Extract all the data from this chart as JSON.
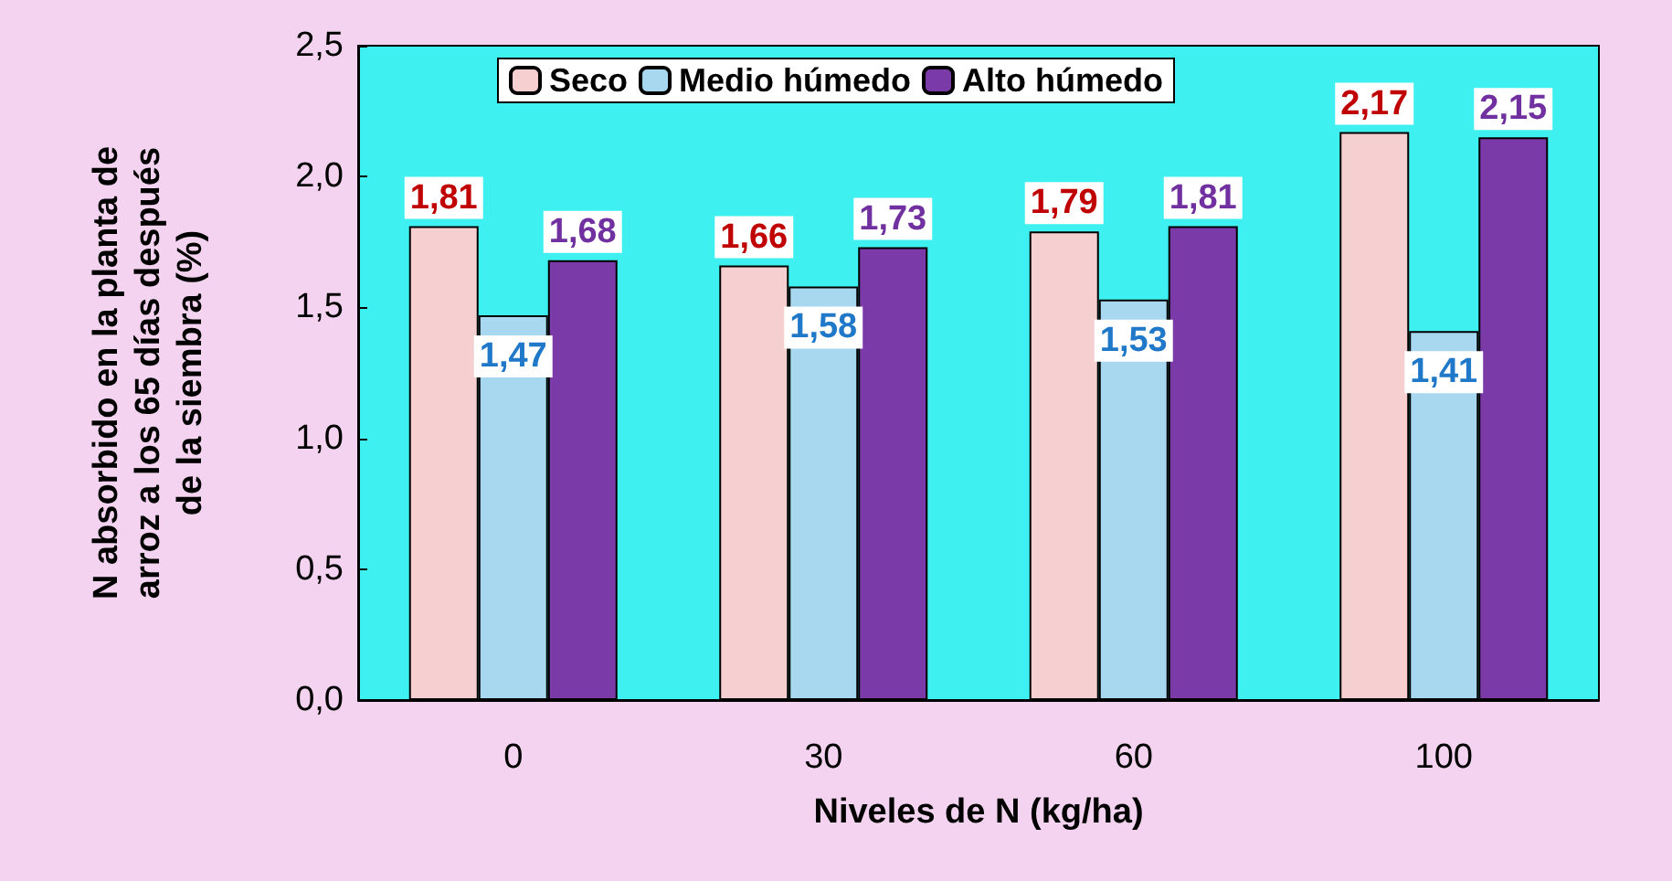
{
  "chart_data": {
    "type": "bar",
    "xlabel": "Niveles de N (kg/ha)",
    "ylabel": "N absorbido en la planta de\narroz a los 65 días después\nde la siembra (%)",
    "categories": [
      "0",
      "30",
      "60",
      "100"
    ],
    "series": [
      {
        "name": "Seco",
        "color": "#f6d0d0",
        "values": [
          1.81,
          1.66,
          1.79,
          2.17
        ],
        "value_labels": [
          "1,81",
          "1,66",
          "1,79",
          "2,17"
        ]
      },
      {
        "name": "Medio húmedo",
        "color": "#a8d8f0",
        "values": [
          1.47,
          1.58,
          1.53,
          1.41
        ],
        "value_labels": [
          "1,47",
          "1,58",
          "1,53",
          "1,41"
        ]
      },
      {
        "name": "Alto húmedo",
        "color": "#7a3aa8",
        "values": [
          1.68,
          1.73,
          1.81,
          2.15
        ],
        "value_labels": [
          "1,68",
          "1,73",
          "1,81",
          "2,15"
        ]
      }
    ],
    "ylim": [
      0,
      2.5
    ],
    "yticks": [
      {
        "value": 0,
        "label": "0,0"
      },
      {
        "value": 0.5,
        "label": "0,5"
      },
      {
        "value": 1,
        "label": "1,0"
      },
      {
        "value": 1.5,
        "label": "1,5"
      },
      {
        "value": 2,
        "label": "2,0"
      },
      {
        "value": 2.5,
        "label": "2,5"
      }
    ],
    "grid": false,
    "legend": "top"
  }
}
